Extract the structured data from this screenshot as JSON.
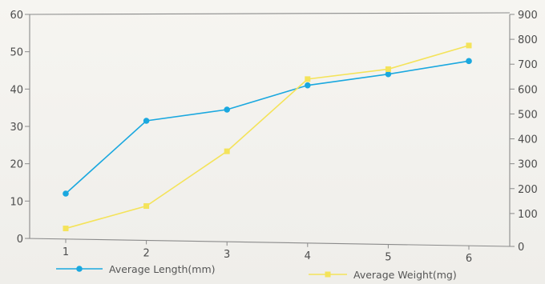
{
  "chart_data": {
    "type": "line",
    "x": [
      1,
      2,
      3,
      4,
      5,
      6
    ],
    "series": [
      {
        "name": "Average Length(mm)",
        "axis": "left",
        "color": "#1aa8df",
        "marker": "circle",
        "values": [
          12,
          31.5,
          34.5,
          41,
          44,
          47.5
        ]
      },
      {
        "name": "Average Weight(mg)",
        "axis": "right",
        "color": "#f4e35a",
        "marker": "square",
        "values": [
          40,
          130,
          350,
          640,
          680,
          775
        ]
      }
    ],
    "y_left": {
      "min": 0,
      "max": 60,
      "ticks": [
        0,
        10,
        20,
        30,
        40,
        50,
        60
      ]
    },
    "y_right": {
      "min": 0,
      "max": 900,
      "ticks": [
        0,
        100,
        200,
        300,
        400,
        500,
        600,
        700,
        800,
        900
      ]
    },
    "legend_position": "bottom",
    "grid": false,
    "colors": {
      "axis": "#8b8b8b",
      "text": "#4d4d4d"
    }
  }
}
